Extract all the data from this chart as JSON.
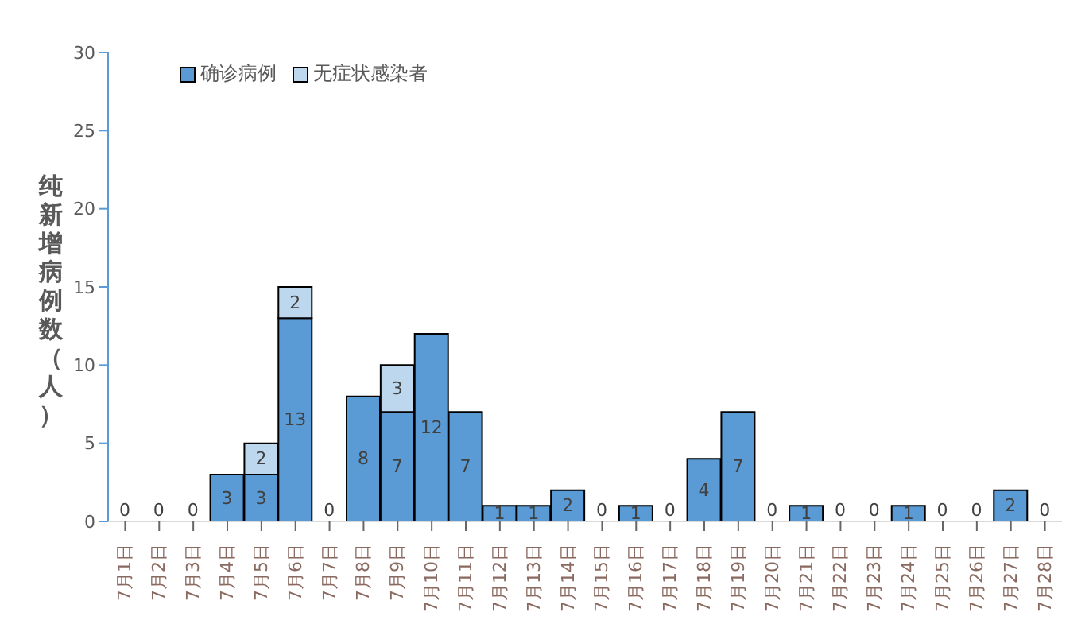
{
  "chart_data": {
    "type": "bar",
    "stacked": true,
    "ylabel": "纯新增病例数（人）",
    "categories": [
      "7月1日",
      "7月2日",
      "7月3日",
      "7月4日",
      "7月5日",
      "7月6日",
      "7月7日",
      "7月8日",
      "7月9日",
      "7月10日",
      "7月11日",
      "7月12日",
      "7月13日",
      "7月14日",
      "7月15日",
      "7月16日",
      "7月17日",
      "7月18日",
      "7月19日",
      "7月20日",
      "7月21日",
      "7月22日",
      "7月23日",
      "7月24日",
      "7月25日",
      "7月26日",
      "7月27日",
      "7月28日"
    ],
    "series": [
      {
        "name": "确诊病例",
        "color": "#5b9bd5",
        "values": [
          0,
          0,
          0,
          3,
          3,
          13,
          0,
          8,
          7,
          12,
          7,
          1,
          1,
          2,
          0,
          1,
          0,
          4,
          7,
          0,
          1,
          0,
          0,
          1,
          0,
          0,
          2,
          0
        ],
        "value_labels": [
          "0",
          "0",
          "0",
          "3",
          "3",
          "13",
          "0",
          "8",
          "7",
          "12",
          "7",
          "1",
          "1",
          "2",
          "0",
          "1",
          "0",
          "4",
          "7",
          "0",
          "1",
          "0",
          "0",
          "1",
          "0",
          "0",
          "2",
          "0"
        ]
      },
      {
        "name": "无症状感染者",
        "color": "#bdd7ee",
        "values": [
          0,
          0,
          0,
          0,
          2,
          2,
          0,
          0,
          3,
          0,
          0,
          0,
          0,
          0,
          0,
          0,
          0,
          0,
          0,
          0,
          0,
          0,
          0,
          0,
          0,
          0,
          0,
          0
        ],
        "value_labels": [
          null,
          null,
          null,
          null,
          "2",
          "2",
          null,
          null,
          "3",
          null,
          null,
          null,
          null,
          null,
          null,
          null,
          null,
          null,
          null,
          null,
          null,
          null,
          null,
          null,
          null,
          null,
          null,
          null
        ]
      }
    ],
    "ylim": [
      0,
      30
    ],
    "yticks": [
      0,
      5,
      10,
      15,
      20,
      25,
      30
    ],
    "grid": false,
    "legend": "top left"
  }
}
